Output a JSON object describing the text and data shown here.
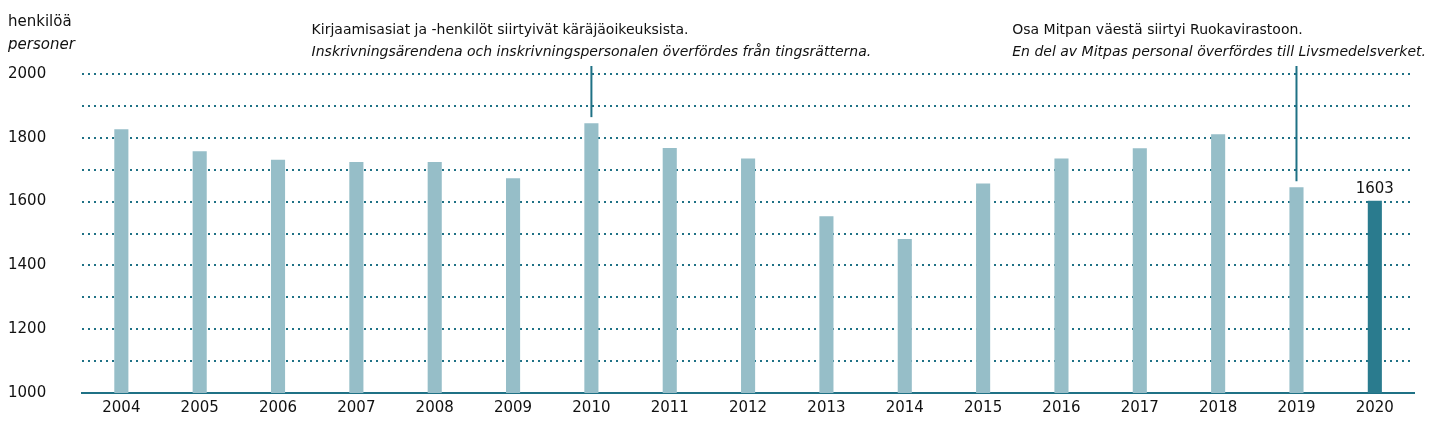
{
  "chart_data": {
    "type": "bar",
    "ylabel": "henkilöä\npersoner",
    "categories": [
      "2004",
      "2005",
      "2006",
      "2007",
      "2008",
      "2009",
      "2010",
      "2011",
      "2012",
      "2013",
      "2014",
      "2015",
      "2016",
      "2017",
      "2018",
      "2019",
      "2020"
    ],
    "values": [
      1827,
      1758,
      1731,
      1724,
      1724,
      1673,
      1846,
      1768,
      1735,
      1554,
      1483,
      1657,
      1735,
      1767,
      1811,
      1645,
      1603
    ],
    "colors": [
      "#96bec8",
      "#96bec8",
      "#96bec8",
      "#96bec8",
      "#96bec8",
      "#96bec8",
      "#96bec8",
      "#96bec8",
      "#96bec8",
      "#96bec8",
      "#96bec8",
      "#96bec8",
      "#96bec8",
      "#96bec8",
      "#96bec8",
      "#96bec8",
      "#2a7b8e"
    ],
    "value_labels": [
      null,
      null,
      null,
      null,
      null,
      null,
      null,
      null,
      null,
      null,
      null,
      null,
      null,
      null,
      null,
      null,
      "1603"
    ],
    "ylim": [
      1000,
      2000
    ],
    "yticks": [
      1000,
      {
        "value": 1100,
        "label": null
      },
      1200,
      {
        "value": 1300,
        "label": null
      },
      1400,
      {
        "value": 1500,
        "label": null
      },
      1600,
      {
        "value": 1700,
        "label": null
      },
      1800,
      {
        "value": 1900,
        "label": null
      },
      2000
    ],
    "grid": "y",
    "legend": false,
    "annotations": [
      {
        "text": "Kirjaamisasiat ja -henkilöt siirtyivät käräjäoikeuksista.\nInskrivningsärendena och inskrivningspersonalen överfördes från tingsrätterna.",
        "x": "2010",
        "y": 1846
      },
      {
        "text": "Osa Mitpan väestä siirtyi Ruokavirastoon.\nEn del av Mitpas personal överfördes till Livsmedelsverket.",
        "x": "2019",
        "y": 1645
      }
    ]
  }
}
